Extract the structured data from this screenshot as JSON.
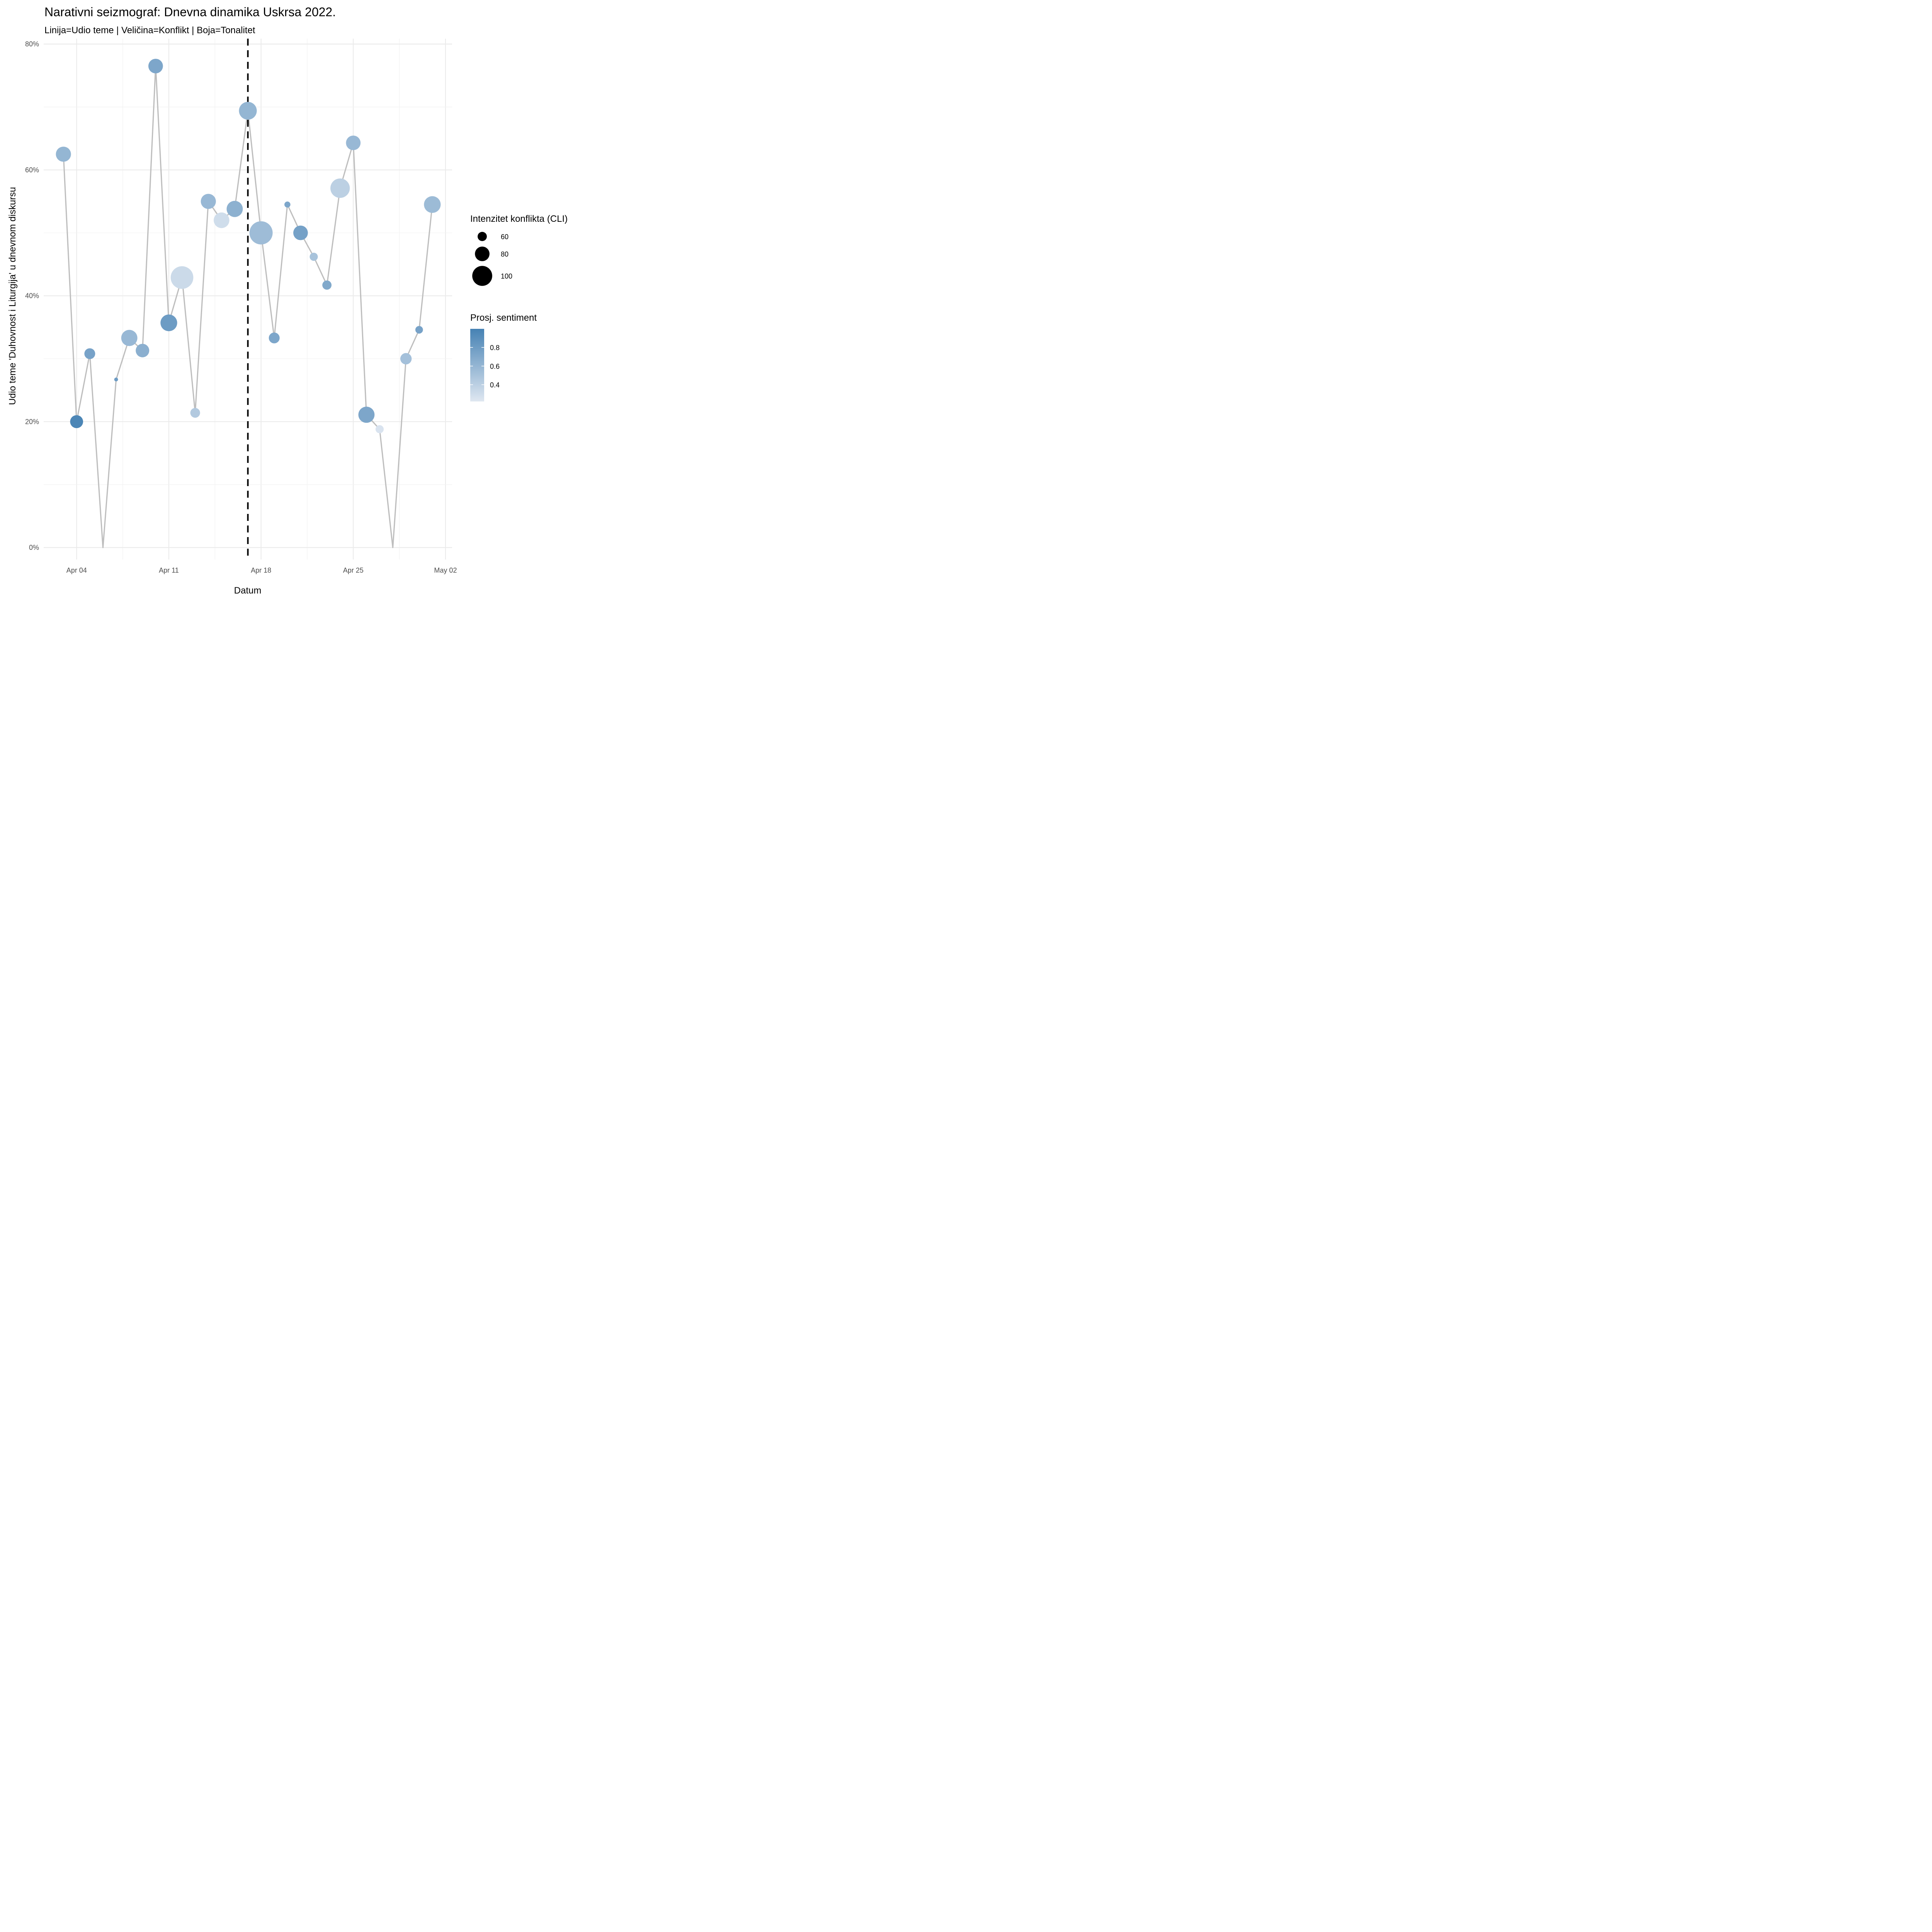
{
  "chart_data": {
    "type": "scatter",
    "title": "Narativni seizmograf: Dnevna dinamika Uskrsa 2022.",
    "subtitle": "Linija=Udio teme | Veličina=Konflikt | Boja=Tonalitet",
    "xlabel": "Datum",
    "ylabel": "Udio teme 'Duhovnost i Liturgija' u dnevnom diskursu",
    "x_ticks": [
      "Apr 04",
      "Apr 11",
      "Apr 18",
      "Apr 25",
      "May 02"
    ],
    "y_ticks": [
      "0%",
      "20%",
      "40%",
      "60%",
      "80%"
    ],
    "y_tick_values": [
      0,
      20,
      40,
      60,
      80
    ],
    "ylim": [
      -3,
      80
    ],
    "xlim": [
      "2022-04-02",
      "2022-05-02"
    ],
    "vline_date": "2022-04-17",
    "line_color": "#bebebe",
    "grid": true,
    "legend_size_title": "Intenzitet konflikta (CLI)",
    "legend_size_labels": [
      "60",
      "80",
      "100"
    ],
    "legend_size_values": [
      60,
      80,
      100
    ],
    "legend_color_title": "Prosj. sentiment",
    "legend_color_labels": [
      "0.8",
      "0.6",
      "0.4"
    ],
    "legend_color_values": [
      0.8,
      0.6,
      0.4
    ],
    "color_scale": {
      "low": "#dfe7f1",
      "high": "#4682b4",
      "min": 0.22,
      "max": 1.0
    },
    "points": [
      {
        "date": "2022-04-03",
        "share": 62.5,
        "cli": 82,
        "sentiment": 0.6
      },
      {
        "date": "2022-04-04",
        "share": 20.0,
        "cli": 74,
        "sentiment": 0.97
      },
      {
        "date": "2022-04-05",
        "share": 30.8,
        "cli": 66,
        "sentiment": 0.75
      },
      {
        "date": "2022-04-06",
        "share": 0.0,
        "cli": null,
        "sentiment": null
      },
      {
        "date": "2022-04-07",
        "share": 26.7,
        "cli": 40,
        "sentiment": 0.8
      },
      {
        "date": "2022-04-08",
        "share": 33.3,
        "cli": 86,
        "sentiment": 0.58
      },
      {
        "date": "2022-04-09",
        "share": 31.3,
        "cli": 76,
        "sentiment": 0.65
      },
      {
        "date": "2022-04-10",
        "share": 76.5,
        "cli": 80,
        "sentiment": 0.72
      },
      {
        "date": "2022-04-11",
        "share": 35.7,
        "cli": 88,
        "sentiment": 0.8
      },
      {
        "date": "2022-04-12",
        "share": 42.9,
        "cli": 110,
        "sentiment": 0.32
      },
      {
        "date": "2022-04-13",
        "share": 21.4,
        "cli": 62,
        "sentiment": 0.45
      },
      {
        "date": "2022-04-14",
        "share": 55.0,
        "cli": 82,
        "sentiment": 0.58
      },
      {
        "date": "2022-04-15",
        "share": 52.0,
        "cli": 84,
        "sentiment": 0.3
      },
      {
        "date": "2022-04-16",
        "share": 53.8,
        "cli": 86,
        "sentiment": 0.64
      },
      {
        "date": "2022-04-17",
        "share": 69.4,
        "cli": 92,
        "sentiment": 0.6
      },
      {
        "date": "2022-04-18",
        "share": 50.0,
        "cli": 112,
        "sentiment": 0.55
      },
      {
        "date": "2022-04-19",
        "share": 33.3,
        "cli": 66,
        "sentiment": 0.72
      },
      {
        "date": "2022-04-20",
        "share": 54.5,
        "cli": 48,
        "sentiment": 0.72
      },
      {
        "date": "2022-04-21",
        "share": 50.0,
        "cli": 80,
        "sentiment": 0.76
      },
      {
        "date": "2022-04-22",
        "share": 46.2,
        "cli": 56,
        "sentiment": 0.5
      },
      {
        "date": "2022-04-23",
        "share": 41.7,
        "cli": 60,
        "sentiment": 0.7
      },
      {
        "date": "2022-04-24",
        "share": 57.1,
        "cli": 98,
        "sentiment": 0.4
      },
      {
        "date": "2022-04-25",
        "share": 64.3,
        "cli": 80,
        "sentiment": 0.58
      },
      {
        "date": "2022-04-26",
        "share": 21.1,
        "cli": 86,
        "sentiment": 0.72
      },
      {
        "date": "2022-04-27",
        "share": 18.8,
        "cli": 56,
        "sentiment": 0.25
      },
      {
        "date": "2022-04-28",
        "share": 0.0,
        "cli": null,
        "sentiment": null
      },
      {
        "date": "2022-04-29",
        "share": 30.0,
        "cli": 68,
        "sentiment": 0.52
      },
      {
        "date": "2022-04-30",
        "share": 34.6,
        "cli": 54,
        "sentiment": 0.75
      },
      {
        "date": "2022-05-01",
        "share": 54.5,
        "cli": 88,
        "sentiment": 0.56
      }
    ]
  }
}
